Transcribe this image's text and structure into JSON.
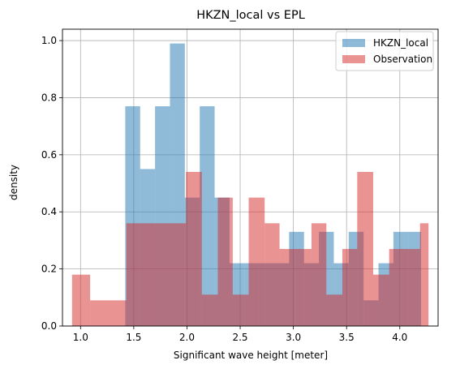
{
  "chart_data": {
    "type": "histogram",
    "title": "HKZN_local vs EPL",
    "xlabel": "Significant wave height [meter]",
    "ylabel": "density",
    "xlim": [
      0.83,
      4.36
    ],
    "ylim": [
      0.0,
      1.04
    ],
    "xticks": [
      "1.0",
      "1.5",
      "2.0",
      "2.5",
      "3.0",
      "3.5",
      "4.0"
    ],
    "xtick_values": [
      1.0,
      1.5,
      2.0,
      2.5,
      3.0,
      3.5,
      4.0
    ],
    "yticks": [
      "0.0",
      "0.2",
      "0.4",
      "0.6",
      "0.8",
      "1.0"
    ],
    "ytick_values": [
      0.0,
      0.2,
      0.4,
      0.6,
      0.8,
      1.0
    ],
    "grid": true,
    "legend_placement": "top-right",
    "series": [
      {
        "name": "HKZN_local",
        "color": "#1f77b4",
        "alpha": 0.5,
        "bin_edges": [
          1.42,
          1.56,
          1.7,
          1.84,
          1.98,
          2.12,
          2.26,
          2.4,
          2.54,
          2.68,
          2.82,
          2.96,
          3.1,
          3.24,
          3.38,
          3.52,
          3.66,
          3.8,
          3.94,
          4.08,
          4.2
        ],
        "values": [
          0.77,
          0.55,
          0.77,
          0.99,
          0.45,
          0.77,
          0.45,
          0.22,
          0.22,
          0.22,
          0.22,
          0.33,
          0.22,
          0.33,
          0.22,
          0.33,
          0.09,
          0.22,
          0.33,
          0.33
        ]
      },
      {
        "name": "Observation",
        "color": "#d62728",
        "alpha": 0.5,
        "bin_edges": [
          0.92,
          1.09,
          1.43,
          1.84,
          1.99,
          2.14,
          2.29,
          2.43,
          2.58,
          2.73,
          2.87,
          3.02,
          3.17,
          3.31,
          3.46,
          3.6,
          3.75,
          3.9,
          4.04,
          4.19,
          4.27
        ],
        "values": [
          0.18,
          0.09,
          0.36,
          0.36,
          0.54,
          0.11,
          0.45,
          0.11,
          0.45,
          0.36,
          0.27,
          0.27,
          0.36,
          0.11,
          0.27,
          0.54,
          0.18,
          0.27,
          0.27,
          0.36
        ]
      }
    ]
  }
}
